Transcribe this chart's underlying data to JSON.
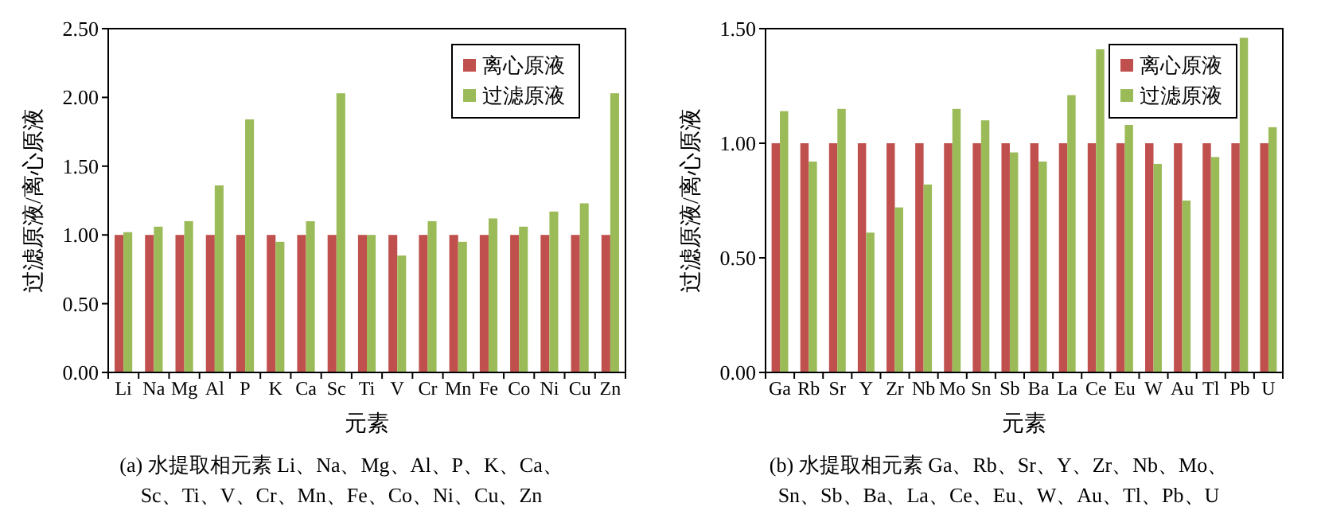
{
  "chart_data": [
    {
      "type": "bar",
      "xlabel": "元素",
      "ylabel": "过滤原液/离心原液",
      "categories": [
        "Li",
        "Na",
        "Mg",
        "Al",
        "P",
        "K",
        "Ca",
        "Sc",
        "Ti",
        "V",
        "Cr",
        "Mn",
        "Fe",
        "Co",
        "Ni",
        "Cu",
        "Zn"
      ],
      "series": [
        {
          "name": "离心原液",
          "color": "#c0504d",
          "values": [
            1.0,
            1.0,
            1.0,
            1.0,
            1.0,
            1.0,
            1.0,
            1.0,
            1.0,
            1.0,
            1.0,
            1.0,
            1.0,
            1.0,
            1.0,
            1.0,
            1.0
          ]
        },
        {
          "name": "过滤原液",
          "color": "#9bbb59",
          "values": [
            1.02,
            1.06,
            1.1,
            1.36,
            1.84,
            0.95,
            1.1,
            2.03,
            1.0,
            0.85,
            1.1,
            0.95,
            1.12,
            1.06,
            1.17,
            1.23,
            2.03
          ]
        }
      ],
      "ylim": [
        0,
        2.5
      ],
      "yticks": [
        {
          "value": 0,
          "label": "0.00"
        },
        {
          "value": 0.5,
          "label": "0.50"
        },
        {
          "value": 1,
          "label": "1.00"
        },
        {
          "value": 1.5,
          "label": "1.50"
        },
        {
          "value": 2,
          "label": "2.00"
        },
        {
          "value": 2.5,
          "label": "2.50"
        }
      ],
      "legend": "top right",
      "annotations": [
        "(a) 水提取相元素 Li、Na、Mg、Al、P、K、Ca、",
        "Sc、Ti、V、Cr、Mn、Fe、Co、Ni、Cu、Zn"
      ]
    },
    {
      "type": "bar",
      "xlabel": "元素",
      "ylabel": "过滤原液/离心原液",
      "categories": [
        "Ga",
        "Rb",
        "Sr",
        "Y",
        "Zr",
        "Nb",
        "Mo",
        "Sn",
        "Sb",
        "Ba",
        "La",
        "Ce",
        "Eu",
        "W",
        "Au",
        "Tl",
        "Pb",
        "U"
      ],
      "series": [
        {
          "name": "离心原液",
          "color": "#c0504d",
          "values": [
            1.0,
            1.0,
            1.0,
            1.0,
            1.0,
            1.0,
            1.0,
            1.0,
            1.0,
            1.0,
            1.0,
            1.0,
            1.0,
            1.0,
            1.0,
            1.0,
            1.0,
            1.0
          ]
        },
        {
          "name": "过滤原液",
          "color": "#9bbb59",
          "values": [
            1.14,
            0.92,
            1.15,
            0.61,
            0.72,
            0.82,
            1.15,
            1.1,
            0.96,
            0.92,
            1.21,
            1.41,
            1.08,
            0.91,
            0.75,
            0.94,
            1.46,
            1.07
          ]
        }
      ],
      "ylim": [
        0,
        1.5
      ],
      "yticks": [
        {
          "value": 0,
          "label": "0.00"
        },
        {
          "value": 0.5,
          "label": "0.50"
        },
        {
          "value": 1,
          "label": "1.00"
        },
        {
          "value": 1.5,
          "label": "1.50"
        }
      ],
      "legend": "top right",
      "annotations": [
        "(b) 水提取相元素 Ga、Rb、Sr、Y、Zr、Nb、Mo、",
        "Sn、Sb、Ba、La、Ce、Eu、W、Au、Tl、Pb、U"
      ]
    }
  ]
}
